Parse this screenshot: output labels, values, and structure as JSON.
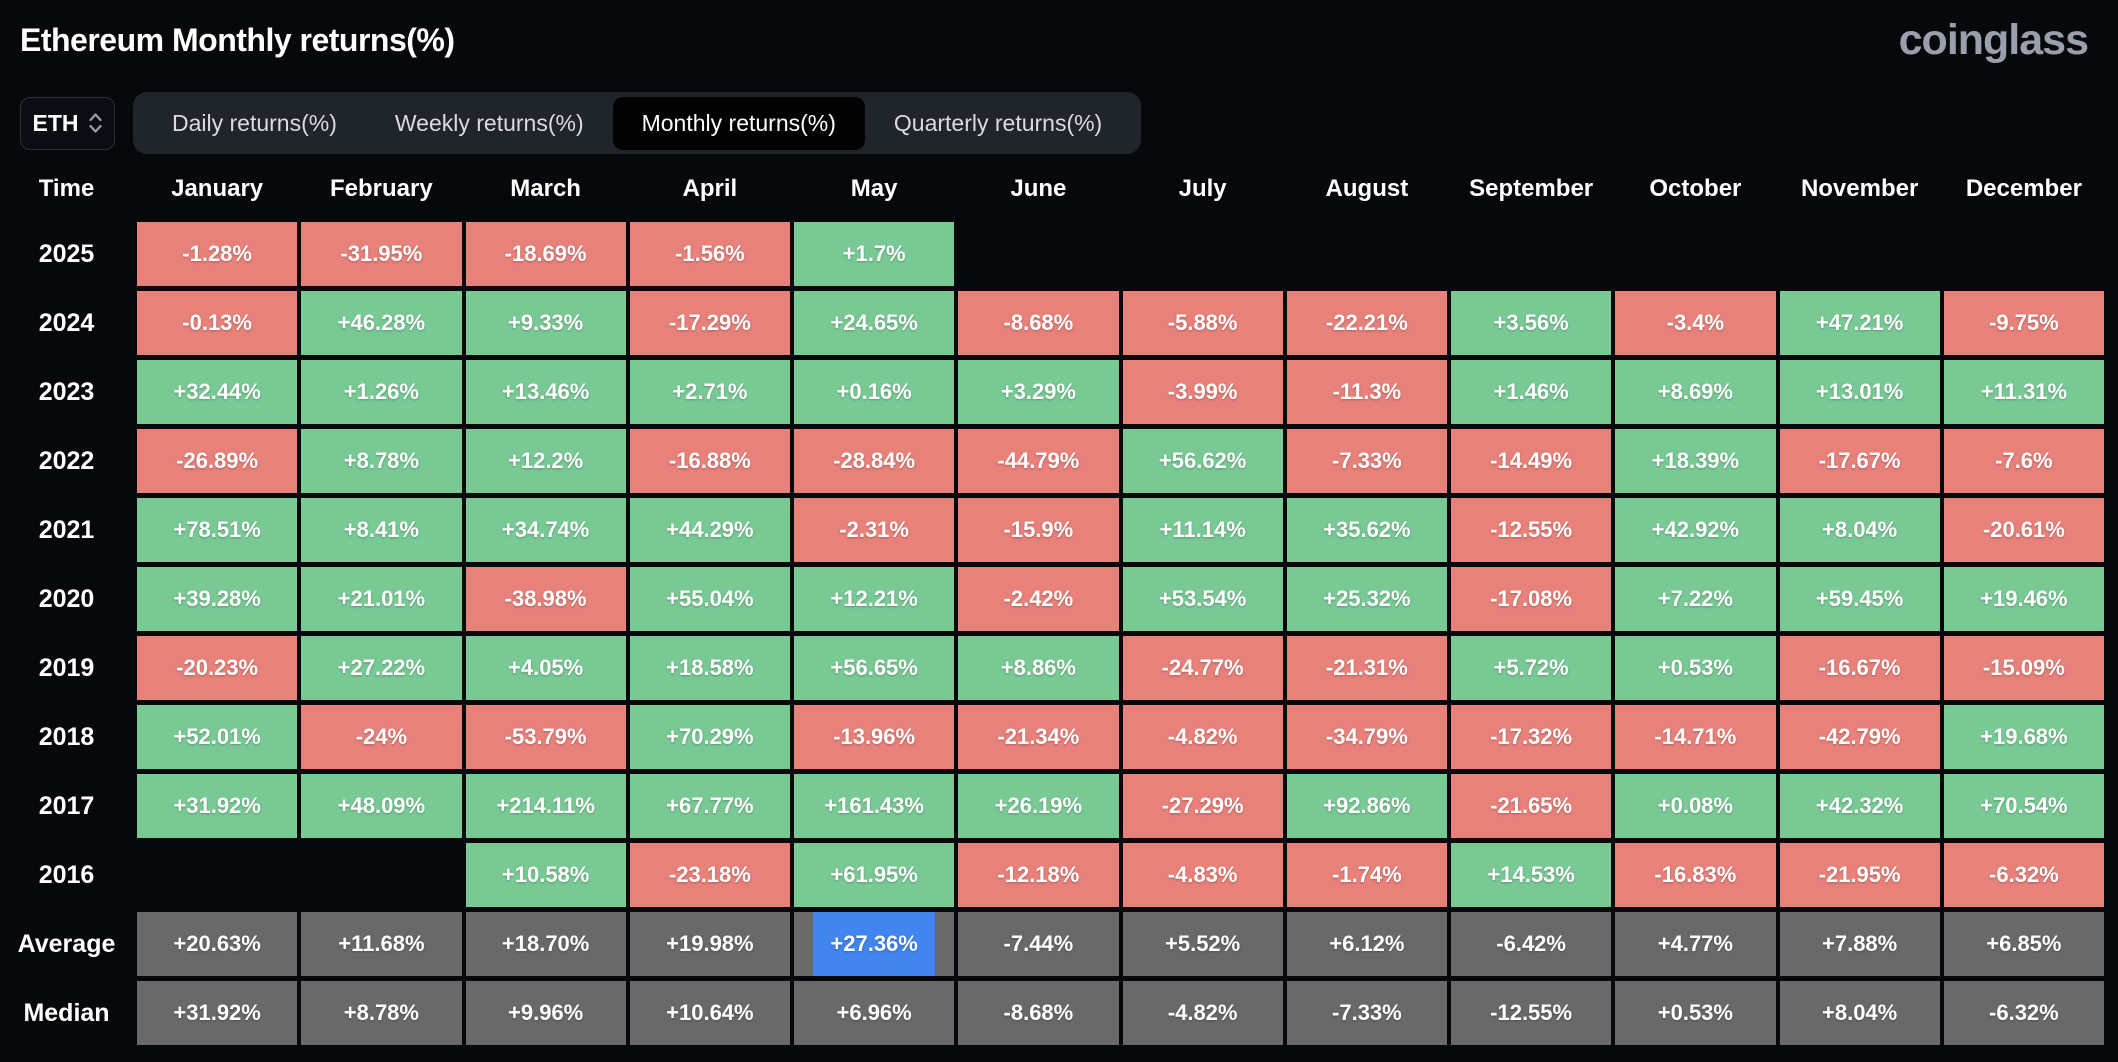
{
  "page": {
    "title": "Ethereum Monthly returns(%)",
    "brand": "coinglass"
  },
  "controls": {
    "symbol_select": {
      "value": "ETH"
    },
    "tabs": [
      {
        "label": "Daily returns(%)",
        "active": false
      },
      {
        "label": "Weekly returns(%)",
        "active": false
      },
      {
        "label": "Monthly returns(%)",
        "active": true
      },
      {
        "label": "Quarterly returns(%)",
        "active": false
      }
    ]
  },
  "chart_data": {
    "type": "heatmap",
    "title": "Ethereum Monthly returns(%)",
    "units": "%",
    "time_header": "Time",
    "columns": [
      "January",
      "February",
      "March",
      "April",
      "May",
      "June",
      "July",
      "August",
      "September",
      "October",
      "November",
      "December"
    ],
    "rows": [
      {
        "label": "2025",
        "kind": "year",
        "values": [
          "-1.28%",
          "-31.95%",
          "-18.69%",
          "-1.56%",
          "+1.7%",
          "",
          "",
          "",
          "",
          "",
          "",
          ""
        ]
      },
      {
        "label": "2024",
        "kind": "year",
        "values": [
          "-0.13%",
          "+46.28%",
          "+9.33%",
          "-17.29%",
          "+24.65%",
          "-8.68%",
          "-5.88%",
          "-22.21%",
          "+3.56%",
          "-3.4%",
          "+47.21%",
          "-9.75%"
        ]
      },
      {
        "label": "2023",
        "kind": "year",
        "values": [
          "+32.44%",
          "+1.26%",
          "+13.46%",
          "+2.71%",
          "+0.16%",
          "+3.29%",
          "-3.99%",
          "-11.3%",
          "+1.46%",
          "+8.69%",
          "+13.01%",
          "+11.31%"
        ]
      },
      {
        "label": "2022",
        "kind": "year",
        "values": [
          "-26.89%",
          "+8.78%",
          "+12.2%",
          "-16.88%",
          "-28.84%",
          "-44.79%",
          "+56.62%",
          "-7.33%",
          "-14.49%",
          "+18.39%",
          "-17.67%",
          "-7.6%"
        ]
      },
      {
        "label": "2021",
        "kind": "year",
        "values": [
          "+78.51%",
          "+8.41%",
          "+34.74%",
          "+44.29%",
          "-2.31%",
          "-15.9%",
          "+11.14%",
          "+35.62%",
          "-12.55%",
          "+42.92%",
          "+8.04%",
          "-20.61%"
        ]
      },
      {
        "label": "2020",
        "kind": "year",
        "values": [
          "+39.28%",
          "+21.01%",
          "-38.98%",
          "+55.04%",
          "+12.21%",
          "-2.42%",
          "+53.54%",
          "+25.32%",
          "-17.08%",
          "+7.22%",
          "+59.45%",
          "+19.46%"
        ]
      },
      {
        "label": "2019",
        "kind": "year",
        "values": [
          "-20.23%",
          "+27.22%",
          "+4.05%",
          "+18.58%",
          "+56.65%",
          "+8.86%",
          "-24.77%",
          "-21.31%",
          "+5.72%",
          "+0.53%",
          "-16.67%",
          "-15.09%"
        ]
      },
      {
        "label": "2018",
        "kind": "year",
        "values": [
          "+52.01%",
          "-24%",
          "-53.79%",
          "+70.29%",
          "-13.96%",
          "-21.34%",
          "-4.82%",
          "-34.79%",
          "-17.32%",
          "-14.71%",
          "-42.79%",
          "+19.68%"
        ]
      },
      {
        "label": "2017",
        "kind": "year",
        "values": [
          "+31.92%",
          "+48.09%",
          "+214.11%",
          "+67.77%",
          "+161.43%",
          "+26.19%",
          "-27.29%",
          "+92.86%",
          "-21.65%",
          "+0.08%",
          "+42.32%",
          "+70.54%"
        ]
      },
      {
        "label": "2016",
        "kind": "year",
        "values": [
          "",
          "",
          "+10.58%",
          "-23.18%",
          "+61.95%",
          "-12.18%",
          "-4.83%",
          "-1.74%",
          "+14.53%",
          "-16.83%",
          "-21.95%",
          "-6.32%"
        ]
      },
      {
        "label": "Average",
        "kind": "aggregate",
        "values": [
          "+20.63%",
          "+11.68%",
          "+18.70%",
          "+19.98%",
          "+27.36%",
          "-7.44%",
          "+5.52%",
          "+6.12%",
          "-6.42%",
          "+4.77%",
          "+7.88%",
          "+6.85%"
        ]
      },
      {
        "label": "Median",
        "kind": "aggregate",
        "values": [
          "+31.92%",
          "+8.78%",
          "+9.96%",
          "+10.64%",
          "+6.96%",
          "-8.68%",
          "-4.82%",
          "-7.33%",
          "-12.55%",
          "+0.53%",
          "+8.04%",
          "-6.32%"
        ]
      }
    ],
    "highlight": {
      "row": "Average",
      "column": "May",
      "value": "+27.36%"
    },
    "colors": {
      "positive": "#79c995",
      "negative": "#e7817a",
      "aggregate": "#696969",
      "highlight": "#4285ee"
    },
    "legend": "green = positive monthly return, red = negative monthly return, gray = aggregate rows"
  }
}
